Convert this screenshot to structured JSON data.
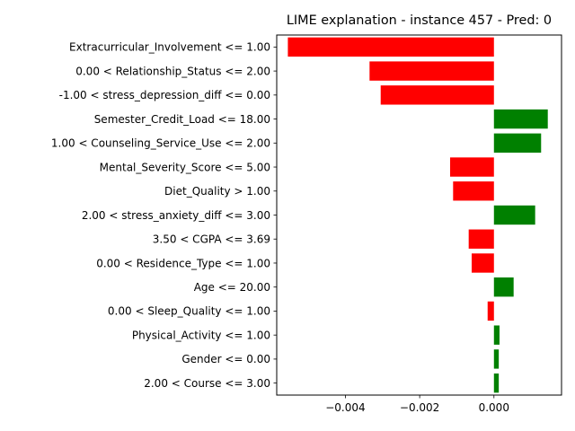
{
  "chart_data": {
    "type": "bar",
    "orientation": "horizontal",
    "title": "LIME explanation - instance 457 - Pred: 0",
    "xlabel": "",
    "ylabel": "",
    "categories": [
      "Extracurricular_Involvement <= 1.00",
      "0.00 < Relationship_Status <= 2.00",
      "-1.00 < stress_depression_diff <= 0.00",
      "Semester_Credit_Load <= 18.00",
      "1.00 < Counseling_Service_Use <= 2.00",
      "Mental_Severity_Score <= 5.00",
      "Diet_Quality > 1.00",
      "2.00 < stress_anxiety_diff <= 3.00",
      "3.50 < CGPA <= 3.69",
      "0.00 < Residence_Type <= 1.00",
      "Age <= 20.00",
      "0.00 < Sleep_Quality <= 1.00",
      "Physical_Activity <= 1.00",
      "Gender <= 0.00",
      "2.00 < Course <= 3.00"
    ],
    "values": [
      -0.00555,
      -0.00335,
      -0.00305,
      0.00145,
      0.00127,
      -0.00118,
      -0.0011,
      0.00111,
      -0.00068,
      -0.0006,
      0.00053,
      -0.00017,
      0.00015,
      0.00013,
      0.00013
    ],
    "xlim": [
      -0.00585,
      0.00182
    ],
    "xticks": [
      -0.004,
      -0.002,
      0.0
    ],
    "xtick_labels": [
      "−0.004",
      "−0.002",
      "0.000"
    ],
    "colors": {
      "positive": "#008000",
      "negative": "#ff0000"
    },
    "grid": false,
    "legend": "none"
  }
}
